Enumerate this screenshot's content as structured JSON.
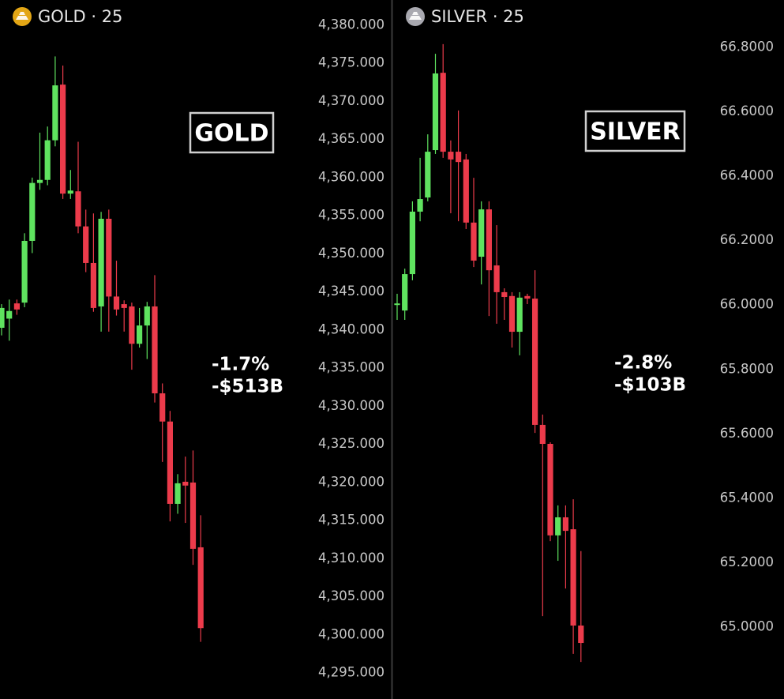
{
  "chart_data": [
    {
      "type": "candlestick",
      "title": "GOLD · 25",
      "label": "GOLD",
      "annotations": [
        "-1.7%",
        "-$513B"
      ],
      "up_color": "#5fe35f",
      "down_color": "#ec3b4b",
      "icon_color": "#e3a615",
      "open": [
        4340.3,
        4341.5,
        4343.5,
        4343.6,
        4351.7,
        4359.3,
        4359.7,
        4364.9,
        4372.2,
        4357.9,
        4358.2,
        4353.6,
        4348.8,
        4343.1,
        4354.6,
        4344.4,
        4343.4,
        4343.1,
        4338.2,
        4340.6,
        4343.1,
        4331.7,
        4328.0,
        4317.2,
        4320.1,
        4320.0,
        4311.5
      ],
      "high": [
        4343.4,
        4344.0,
        4344.0,
        4352.7,
        4360.0,
        4365.9,
        4366.7,
        4375.9,
        4374.7,
        4361.0,
        4364.7,
        4355.8,
        4355.3,
        4355.5,
        4355.8,
        4349.1,
        4343.9,
        4343.6,
        4342.9,
        4343.7,
        4347.2,
        4333.0,
        4329.4,
        4321.1,
        4323.4,
        4324.2,
        4315.7
      ],
      "low": [
        4339.3,
        4338.6,
        4342.0,
        4343.0,
        4350.1,
        4358.4,
        4359.0,
        4364.1,
        4357.2,
        4357.2,
        4352.7,
        4347.6,
        4342.4,
        4339.8,
        4339.8,
        4341.9,
        4339.8,
        4334.8,
        4337.7,
        4336.2,
        4330.5,
        4322.7,
        4314.9,
        4315.9,
        4314.7,
        4309.2,
        4299.1
      ],
      "close": [
        4342.9,
        4342.5,
        4342.7,
        4351.7,
        4359.3,
        4359.7,
        4364.9,
        4372.1,
        4357.9,
        4358.3,
        4353.6,
        4348.8,
        4342.9,
        4354.6,
        4344.4,
        4342.7,
        4342.9,
        4338.2,
        4340.6,
        4343.1,
        4331.7,
        4328.0,
        4317.2,
        4319.9,
        4319.6,
        4311.3,
        4300.9
      ],
      "ylim": [
        4291.6,
        4383.3
      ],
      "yticks": [
        {
          "value": 4295,
          "label": "4,295.000"
        },
        {
          "value": 4300,
          "label": "4,300.000"
        },
        {
          "value": 4305,
          "label": "4,305.000"
        },
        {
          "value": 4310,
          "label": "4,310.000"
        },
        {
          "value": 4315,
          "label": "4,315.000"
        },
        {
          "value": 4320,
          "label": "4,320.000"
        },
        {
          "value": 4325,
          "label": "4,325.000"
        },
        {
          "value": 4330,
          "label": "4,330.000"
        },
        {
          "value": 4335,
          "label": "4,335.000"
        },
        {
          "value": 4340,
          "label": "4,340.000"
        },
        {
          "value": 4345,
          "label": "4,345.000"
        },
        {
          "value": 4350,
          "label": "4,350.000"
        },
        {
          "value": 4355,
          "label": "4,355.000"
        },
        {
          "value": 4360,
          "label": "4,360.000"
        },
        {
          "value": 4365,
          "label": "4,365.000"
        },
        {
          "value": 4370,
          "label": "4,370.000"
        },
        {
          "value": 4375,
          "label": "4,375.000"
        },
        {
          "value": 4380,
          "label": "4,380.000"
        }
      ],
      "grid": false
    },
    {
      "type": "candlestick",
      "title": "SILVER · 25",
      "label": "SILVER",
      "annotations": [
        "-2.8%",
        "-$103B"
      ],
      "up_color": "#5fe35f",
      "down_color": "#ec3b4b",
      "icon_color": "#a9a9b0",
      "open": [
        66.0,
        65.983,
        66.096,
        66.29,
        66.334,
        66.481,
        66.721,
        66.476,
        66.476,
        66.452,
        66.256,
        66.15,
        66.297,
        66.123,
        66.04,
        66.028,
        65.917,
        66.028,
        66.02,
        65.628,
        65.569,
        65.285,
        65.341,
        65.304,
        65.005
      ],
      "high": [
        66.035,
        66.113,
        66.322,
        66.457,
        66.53,
        66.78,
        66.81,
        66.511,
        66.604,
        66.469,
        66.395,
        66.322,
        66.322,
        66.248,
        66.052,
        66.04,
        66.04,
        66.035,
        66.108,
        65.66,
        65.574,
        65.378,
        65.378,
        65.397,
        65.236
      ],
      "low": [
        65.954,
        65.954,
        66.077,
        66.26,
        66.322,
        66.469,
        66.457,
        66.285,
        66.26,
        66.236,
        66.118,
        66.064,
        65.966,
        65.942,
        65.954,
        65.868,
        65.844,
        66.003,
        65.603,
        65.034,
        65.267,
        65.206,
        65.12,
        64.917,
        64.892
      ],
      "close": [
        66.005,
        66.096,
        66.29,
        66.329,
        66.476,
        66.719,
        66.476,
        66.452,
        66.444,
        66.256,
        66.138,
        66.297,
        66.108,
        66.04,
        66.025,
        65.917,
        66.023,
        66.02,
        65.628,
        65.569,
        65.285,
        65.341,
        65.299,
        65.005,
        64.951
      ],
      "ylim": [
        64.777,
        66.947
      ],
      "yticks": [
        {
          "value": 65.0,
          "label": "65.0000"
        },
        {
          "value": 65.2,
          "label": "65.2000"
        },
        {
          "value": 65.4,
          "label": "65.4000"
        },
        {
          "value": 65.6,
          "label": "65.6000"
        },
        {
          "value": 65.8,
          "label": "65.8000"
        },
        {
          "value": 66.0,
          "label": "66.0000"
        },
        {
          "value": 66.2,
          "label": "66.2000"
        },
        {
          "value": 66.4,
          "label": "66.4000"
        },
        {
          "value": 66.6,
          "label": "66.6000"
        },
        {
          "value": 66.8,
          "label": "66.8000"
        }
      ],
      "grid": false
    }
  ]
}
